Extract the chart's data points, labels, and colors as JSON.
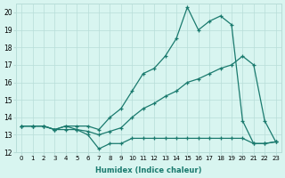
{
  "xlabel": "Humidex (Indice chaleur)",
  "x_values": [
    0,
    1,
    2,
    3,
    4,
    5,
    6,
    7,
    8,
    9,
    10,
    11,
    12,
    13,
    14,
    15,
    16,
    17,
    18,
    19,
    20,
    21,
    22,
    23
  ],
  "series1": [
    13.5,
    13.5,
    13.5,
    13.3,
    13.3,
    13.3,
    13.0,
    12.2,
    12.5,
    12.5,
    12.8,
    12.8,
    12.8,
    12.8,
    12.8,
    12.8,
    12.8,
    12.8,
    12.8,
    12.8,
    12.8,
    12.5,
    12.5,
    12.6
  ],
  "series2": [
    13.5,
    13.5,
    13.5,
    13.3,
    13.5,
    13.3,
    13.2,
    13.0,
    13.2,
    13.4,
    14.0,
    14.5,
    14.8,
    15.2,
    15.5,
    16.0,
    16.2,
    16.5,
    16.8,
    17.0,
    17.5,
    17.0,
    13.8,
    12.6
  ],
  "series3": [
    13.5,
    13.5,
    13.5,
    13.3,
    13.5,
    13.5,
    13.5,
    13.3,
    14.0,
    14.5,
    15.5,
    16.5,
    16.8,
    17.5,
    18.5,
    20.3,
    19.0,
    19.5,
    19.8,
    19.3,
    13.8,
    12.5,
    12.5,
    12.6
  ],
  "line_color": "#1a7a6e",
  "bg_color": "#d8f5f0",
  "grid_color": "#b8ddd8",
  "ylim": [
    12,
    20.5
  ],
  "yticks": [
    12,
    13,
    14,
    15,
    16,
    17,
    18,
    19,
    20
  ],
  "xticks": [
    0,
    1,
    2,
    3,
    4,
    5,
    6,
    7,
    8,
    9,
    10,
    11,
    12,
    13,
    14,
    15,
    16,
    17,
    18,
    19,
    20,
    21,
    22,
    23
  ]
}
